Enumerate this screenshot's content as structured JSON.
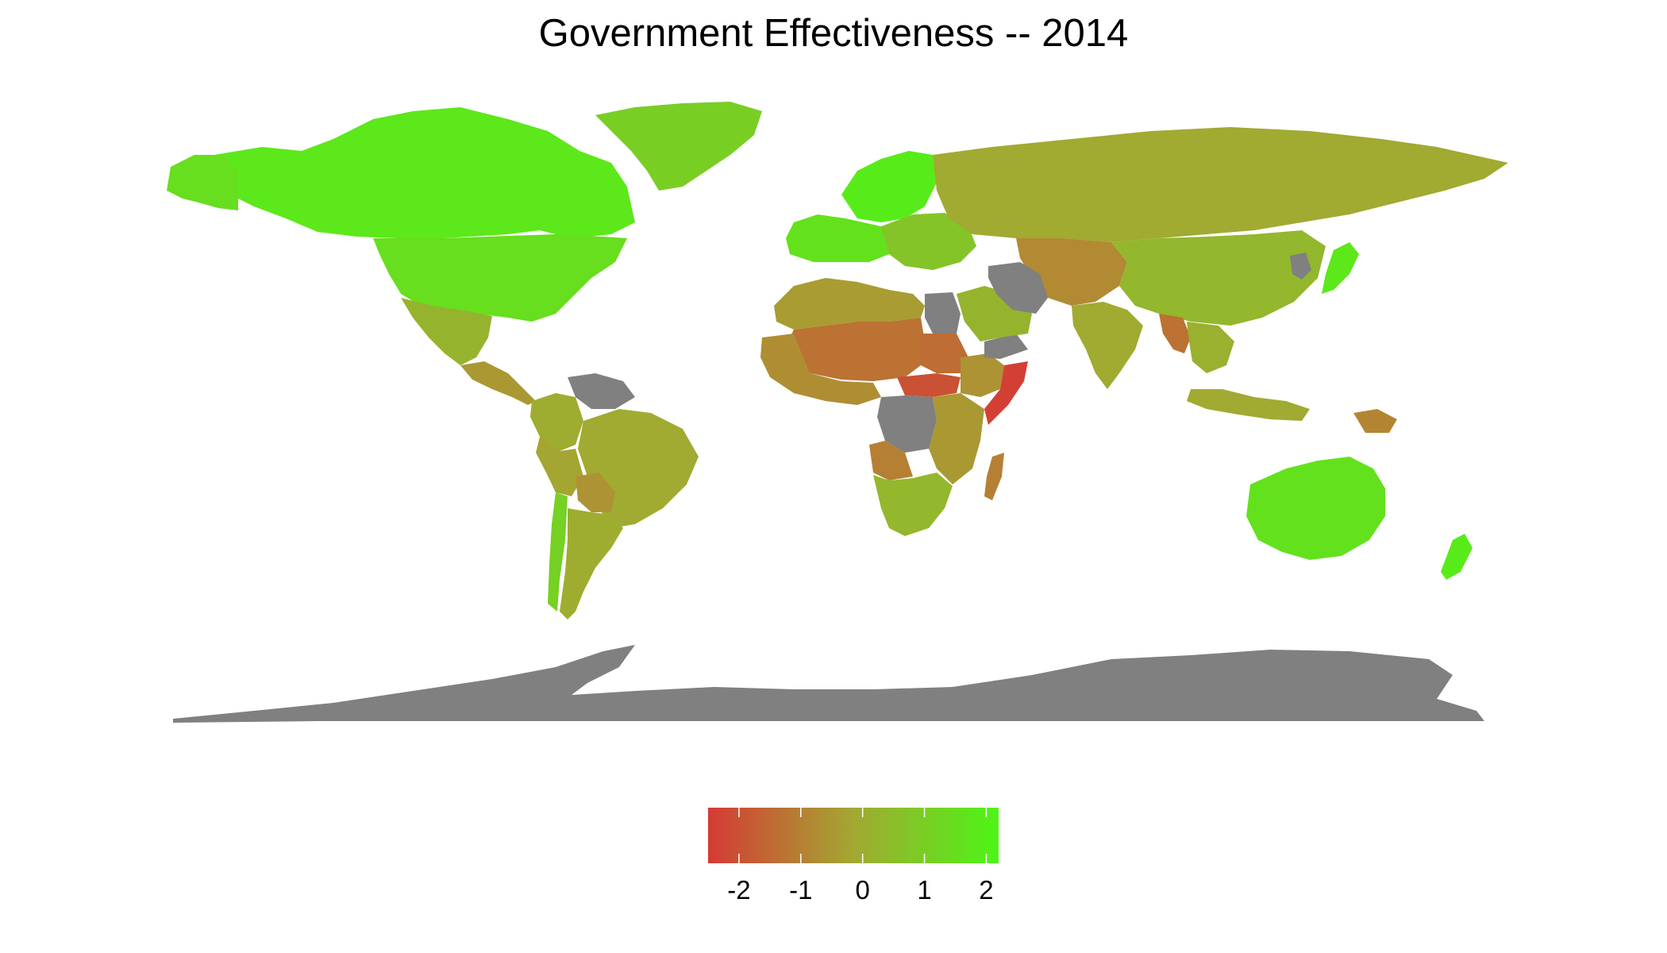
{
  "title": "Government Effectiveness -- 2014",
  "colors": {
    "low": "#d53a35",
    "mid": "#a3a832",
    "high": "#4df516",
    "no_data": "#808080",
    "background": "#ffffff"
  },
  "legend": {
    "min": -2.5,
    "max": 2.2,
    "ticks": [
      -2,
      -1,
      0,
      1,
      2
    ],
    "tick_labels": [
      "-2",
      "-1",
      "0",
      "1",
      "2"
    ]
  },
  "regions": [
    {
      "name": "Canada",
      "value": 1.8
    },
    {
      "name": "United States",
      "value": 1.5
    },
    {
      "name": "Alaska",
      "value": 1.5
    },
    {
      "name": "Greenland",
      "value": 1.0
    },
    {
      "name": "Mexico",
      "value": 0.2
    },
    {
      "name": "Central America",
      "value": -0.5
    },
    {
      "name": "Venezuela",
      "value": null
    },
    {
      "name": "Colombia",
      "value": 0.0
    },
    {
      "name": "Brazil",
      "value": -0.1
    },
    {
      "name": "Peru",
      "value": -0.2
    },
    {
      "name": "Bolivia",
      "value": -0.6
    },
    {
      "name": "Chile",
      "value": 1.1
    },
    {
      "name": "Argentina",
      "value": 0.0
    },
    {
      "name": "Western Europe",
      "value": 1.6
    },
    {
      "name": "Scandinavia",
      "value": 1.9
    },
    {
      "name": "Eastern Europe",
      "value": 0.7
    },
    {
      "name": "Russia",
      "value": -0.1
    },
    {
      "name": "North Africa",
      "value": -0.4
    },
    {
      "name": "Egypt",
      "value": null
    },
    {
      "name": "Sahel",
      "value": -1.3
    },
    {
      "name": "West Africa",
      "value": -0.7
    },
    {
      "name": "Sudan",
      "value": -1.4
    },
    {
      "name": "South Sudan",
      "value": -2.0
    },
    {
      "name": "Ethiopia",
      "value": -0.6
    },
    {
      "name": "Somalia",
      "value": -2.4
    },
    {
      "name": "DR Congo",
      "value": null
    },
    {
      "name": "East Africa",
      "value": -0.5
    },
    {
      "name": "Angola",
      "value": -1.0
    },
    {
      "name": "Southern Africa",
      "value": 0.3
    },
    {
      "name": "Madagascar",
      "value": -1.0
    },
    {
      "name": "Saudi Arabia",
      "value": 0.2
    },
    {
      "name": "Yemen",
      "value": null
    },
    {
      "name": "Iran",
      "value": null
    },
    {
      "name": "Central Asia",
      "value": -0.8
    },
    {
      "name": "China",
      "value": 0.3
    },
    {
      "name": "India",
      "value": -0.1
    },
    {
      "name": "Myanmar",
      "value": -1.3
    },
    {
      "name": "Southeast Asia",
      "value": 0.1
    },
    {
      "name": "North Korea",
      "value": null
    },
    {
      "name": "Japan",
      "value": 1.8
    },
    {
      "name": "Indonesia",
      "value": -0.1
    },
    {
      "name": "Papua New Guinea",
      "value": -0.9
    },
    {
      "name": "Australia",
      "value": 1.6
    },
    {
      "name": "New Zealand",
      "value": 1.9
    },
    {
      "name": "Antarctica",
      "value": null
    }
  ]
}
